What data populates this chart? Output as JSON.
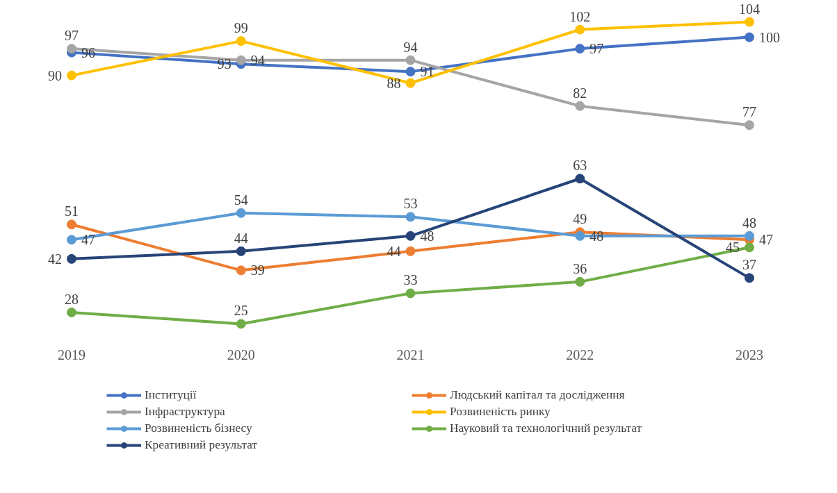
{
  "chart_data": {
    "type": "line",
    "categories": [
      "2019",
      "2020",
      "2021",
      "2022",
      "2023"
    ],
    "series": [
      {
        "name": "Інституції",
        "color": "#4472c4",
        "values": [
          96,
          93,
          91,
          97,
          100
        ]
      },
      {
        "name": "Людський капітал та дослідження",
        "color": "#ed7d31",
        "values": [
          51,
          39,
          44,
          49,
          47
        ]
      },
      {
        "name": "Інфраструктура",
        "color": "#a5a5a5",
        "values": [
          97,
          94,
          94,
          82,
          77
        ]
      },
      {
        "name": "Розвиненість ринку",
        "color": "#ffc000",
        "values": [
          90,
          99,
          88,
          102,
          104
        ]
      },
      {
        "name": "Розвиненість бізнесу",
        "color": "#5b9bd5",
        "values": [
          47,
          54,
          53,
          48,
          48
        ]
      },
      {
        "name": "Науковий та технологічний результат",
        "color": "#70ad47",
        "values": [
          28,
          25,
          33,
          36,
          45
        ]
      },
      {
        "name": "Креативний результат",
        "color": "#264478",
        "values": [
          42,
          44,
          48,
          63,
          37
        ]
      }
    ],
    "tick_labels": "x",
    "data_labels": true,
    "legend": "bottom",
    "grid": false,
    "marker": "circle",
    "line_style": "solid"
  }
}
